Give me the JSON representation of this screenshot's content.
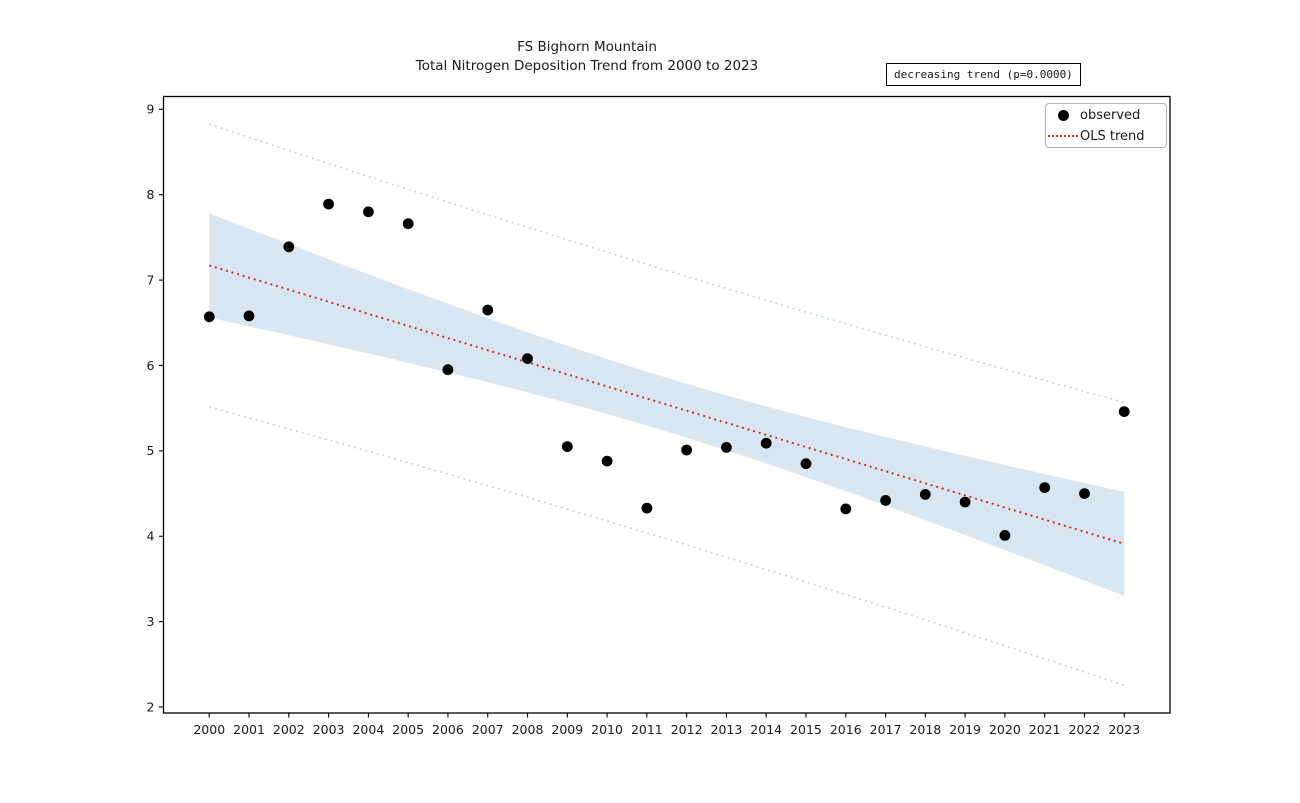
{
  "title": {
    "line1": "FS Bighorn Mountain",
    "line2": "Total Nitrogen Deposition Trend from 2000 to 2023"
  },
  "annotation": {
    "text": "decreasing trend (p=0.0000)"
  },
  "legend": {
    "observed_label": "observed",
    "trend_label": "OLS trend",
    "position": "upper right"
  },
  "colors": {
    "observed": "#000000",
    "trend": "#d62728",
    "ci_band_fill": "#1f77b4",
    "ci_band_opacity": 0.18,
    "pi_line": "#b9d2e6",
    "axes": "#000000",
    "tick_text": "#1a1a1a"
  },
  "chart_data": {
    "type": "scatter",
    "title": "FS Bighorn Mountain\nTotal Nitrogen Deposition Trend from 2000 to 2023",
    "x": [
      2000,
      2001,
      2002,
      2003,
      2004,
      2005,
      2006,
      2007,
      2008,
      2009,
      2010,
      2011,
      2012,
      2013,
      2014,
      2015,
      2016,
      2017,
      2018,
      2019,
      2020,
      2021,
      2022,
      2023
    ],
    "series": [
      {
        "name": "observed",
        "marker": "circle",
        "color": "#000000",
        "values": [
          6.57,
          6.58,
          7.39,
          7.89,
          7.8,
          7.66,
          5.95,
          6.65,
          6.08,
          5.05,
          4.88,
          4.33,
          5.01,
          5.04,
          5.09,
          4.85,
          4.32,
          4.42,
          4.49,
          4.4,
          4.01,
          4.57,
          4.5,
          5.46
        ]
      }
    ],
    "trend_line": {
      "label": "OLS trend",
      "method": "ols",
      "style": "dotted",
      "color": "#d62728",
      "endpoints_x": [
        2000,
        2023
      ],
      "endpoints_y": [
        7.17,
        3.91
      ],
      "slope_per_year": -0.142
    },
    "confidence_band": {
      "level": 0.95,
      "fill": "#1f77b4",
      "opacity": 0.18,
      "at_2000": [
        6.56,
        7.78
      ],
      "at_2023": [
        3.3,
        4.52
      ]
    },
    "prediction_interval": {
      "level": 0.95,
      "style": "dotted",
      "color": "#b9d2e6",
      "at_2000": [
        5.51,
        8.83
      ],
      "at_2023": [
        2.25,
        5.57
      ]
    },
    "annotation": "decreasing trend (p=0.0000)",
    "legend_entries": [
      "observed",
      "OLS trend"
    ],
    "xlabel": "",
    "ylabel": "",
    "xlim": [
      1998.85,
      2024.15
    ],
    "ylim": [
      1.93,
      9.15
    ],
    "yticks": [
      2,
      3,
      4,
      5,
      6,
      7,
      8,
      9
    ],
    "grid": false
  }
}
